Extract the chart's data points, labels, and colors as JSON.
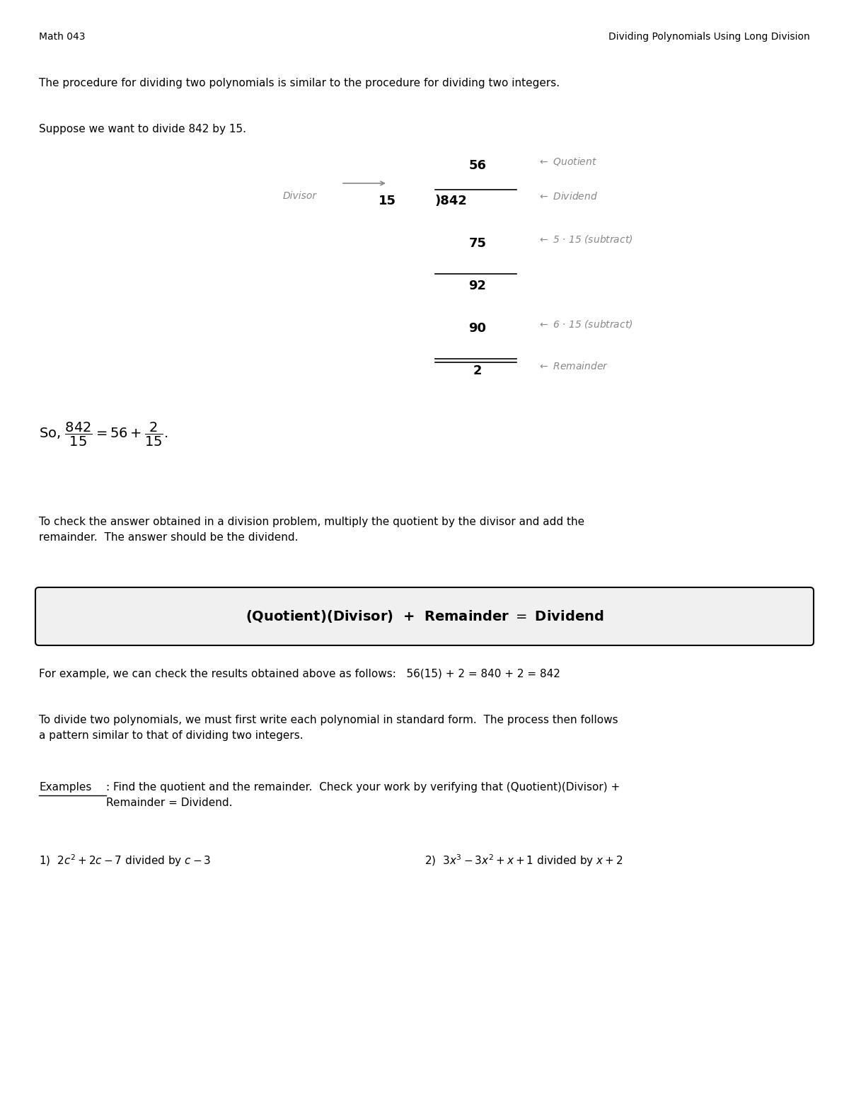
{
  "bg_color": "#ffffff",
  "header_left": "Math 043",
  "header_right": "Dividing Polynomials Using Long Division",
  "header_fontsize": 11,
  "body_fontsize": 11,
  "math_fontsize": 12,
  "para1": "The procedure for dividing two polynomials is similar to the procedure for dividing two integers.",
  "para2": "Suppose we want to divide 842 by 15.",
  "para3": "To check the answer obtained in a division problem, multiply the quotient by the divisor and add the\nremainder.  The answer should be the dividend.",
  "box_formula": "(Quotient)(Divisor)  +  Remainder = Dividend",
  "para4": "For example, we can check the results obtained above as follows:   56(15) + 2 = 840 + 2 = 842",
  "para5": "To divide two polynomials, we must first write each polynomial in standard form.  The process then follows\na pattern similar to that of dividing two integers.",
  "examples_label": "Examples",
  "examples_text": ": Find the quotient and the remainder.  Check your work by verifying that (Quotient)(Divisor) +\nRemainder = Dividend.",
  "ex1_label": "1)",
  "ex2_label": "2)"
}
